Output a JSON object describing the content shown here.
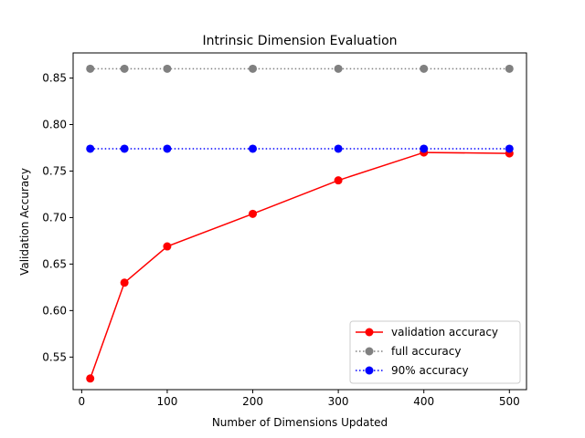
{
  "chart_data": {
    "type": "line",
    "title": "Intrinsic Dimension Evaluation",
    "xlabel": "Number of Dimensions Updated",
    "ylabel": "Validation Accuracy",
    "xlim": [
      -10,
      520
    ],
    "ylim": [
      0.515,
      0.877
    ],
    "xticks": [
      0,
      100,
      200,
      300,
      400,
      500
    ],
    "yticks": [
      0.55,
      0.6,
      0.65,
      0.7,
      0.75,
      0.8,
      0.85
    ],
    "x": [
      10,
      50,
      100,
      200,
      300,
      400,
      500
    ],
    "series": [
      {
        "name": "validation accuracy",
        "values": [
          0.527,
          0.63,
          0.669,
          0.704,
          0.74,
          0.77,
          0.769
        ],
        "color": "#ff0000",
        "linestyle": "solid"
      },
      {
        "name": "full accuracy",
        "values": [
          0.86,
          0.86,
          0.86,
          0.86,
          0.86,
          0.86,
          0.86
        ],
        "color": "#808080",
        "linestyle": "dotted"
      },
      {
        "name": "90% accuracy",
        "values": [
          0.774,
          0.774,
          0.774,
          0.774,
          0.774,
          0.774,
          0.774
        ],
        "color": "#0000ff",
        "linestyle": "dotted"
      }
    ],
    "grid": false,
    "legend_position": "bottom-right"
  }
}
